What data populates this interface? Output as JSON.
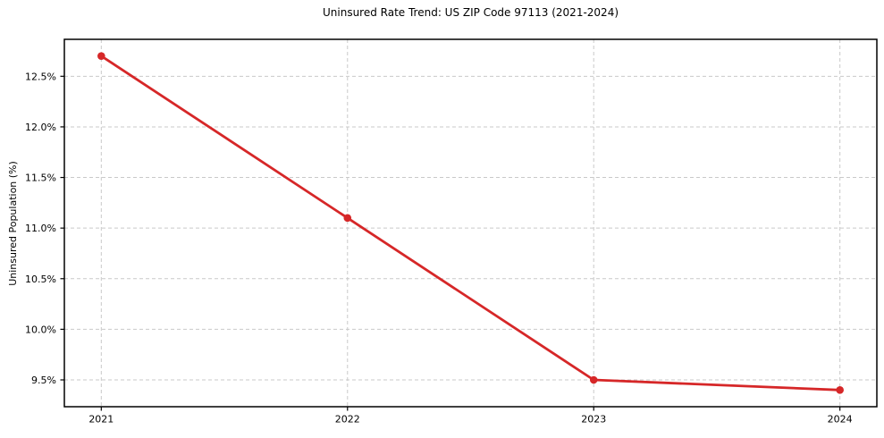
{
  "chart_data": {
    "type": "line",
    "title": "Uninsured Rate Trend: US ZIP Code 97113 (2021-2024)",
    "xlabel": "",
    "ylabel": "Uninsured Population (%)",
    "x": [
      2021,
      2022,
      2023,
      2024
    ],
    "series": [
      {
        "name": "Uninsured rate",
        "values": [
          12.7,
          11.1,
          9.5,
          9.4
        ],
        "color": "#d62728",
        "marker": "circle",
        "line_width": 2.8,
        "marker_radius": 4.3
      }
    ],
    "xticks": [
      2021,
      2022,
      2023,
      2024
    ],
    "xtick_labels": [
      "2021",
      "2022",
      "2023",
      "2024"
    ],
    "yticks": [
      9.5,
      10.0,
      10.5,
      11.0,
      11.5,
      12.0,
      12.5
    ],
    "ytick_labels": [
      "9.5%",
      "10.0%",
      "10.5%",
      "11.0%",
      "11.5%",
      "12.0%",
      "12.5%"
    ],
    "xlim": [
      2020.85,
      2024.15
    ],
    "ylim": [
      9.235,
      12.865
    ],
    "grid": true,
    "grid_style": "dashed",
    "grid_color": "#c9c9c9",
    "background_color": "#ffffff",
    "spine_color": "#000000",
    "tick_color": "#000000",
    "text_color": "#000000",
    "legend_position": "none"
  }
}
